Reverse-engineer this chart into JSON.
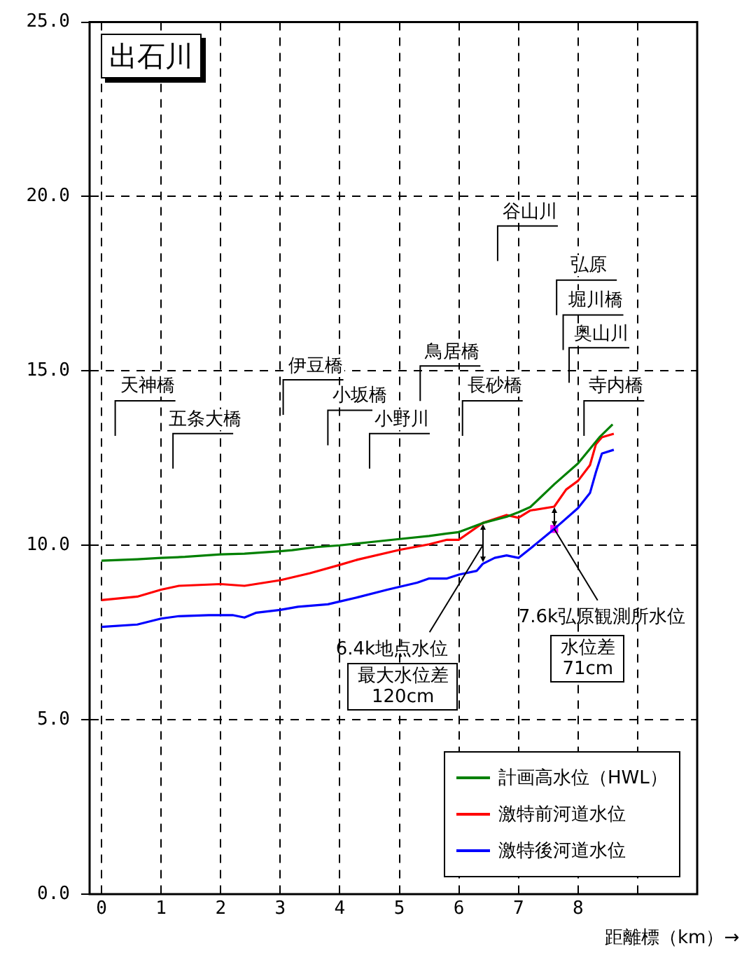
{
  "chart_data": {
    "type": "line",
    "title": "出石川",
    "xlabel": "距離標（km）→",
    "xlim": [
      -0.2,
      10
    ],
    "xticks": [
      0,
      1,
      2,
      3,
      4,
      5,
      6,
      7,
      8,
      {
        "value": 9,
        "label": null
      }
    ],
    "ylim": [
      0,
      25
    ],
    "yticks": [
      {
        "value": 0,
        "label": "0.0"
      },
      {
        "value": 5,
        "label": "5.0"
      },
      {
        "value": 10,
        "label": "10.0"
      },
      {
        "value": 15,
        "label": "15.0"
      },
      {
        "value": 20,
        "label": "20.0"
      },
      {
        "value": 25,
        "label": "25.0"
      }
    ],
    "grid": true,
    "legend": "bottom right",
    "marker": "none",
    "line_style": "solid",
    "series": [
      {
        "name": "計画高水位（HWL）",
        "color": "#008000",
        "x": [
          0,
          0.6,
          1,
          1.4,
          2,
          2.4,
          3,
          3.2,
          3.6,
          4,
          4.5,
          5,
          5.5,
          5.8,
          6,
          6.4,
          6.8,
          7,
          7.2,
          7.6,
          8,
          8.36,
          8.58
        ],
        "values": [
          9.56,
          9.6,
          9.64,
          9.67,
          9.74,
          9.76,
          9.83,
          9.86,
          9.95,
          10.0,
          10.09,
          10.18,
          10.27,
          10.34,
          10.38,
          10.64,
          10.82,
          10.95,
          11.1,
          11.75,
          12.35,
          13.1,
          13.47
        ]
      },
      {
        "name": "激特前河道水位",
        "color": "#ff0000",
        "x": [
          0,
          0.6,
          1,
          1.3,
          2,
          2.4,
          3,
          3.5,
          4,
          4.3,
          5,
          5.5,
          5.8,
          6,
          6.4,
          6.8,
          7,
          7.2,
          7.6,
          7.8,
          8,
          8.2,
          8.3,
          8.4,
          8.6
        ],
        "values": [
          8.43,
          8.53,
          8.73,
          8.84,
          8.89,
          8.84,
          9.0,
          9.2,
          9.44,
          9.59,
          9.87,
          10.03,
          10.16,
          10.16,
          10.64,
          10.87,
          10.79,
          11.0,
          11.11,
          11.6,
          11.85,
          12.3,
          12.9,
          13.1,
          13.2
        ]
      },
      {
        "name": "激特後河道水位",
        "color": "#0000ff",
        "x": [
          0,
          0.6,
          1,
          1.3,
          1.8,
          2.2,
          2.4,
          2.6,
          3,
          3.3,
          3.8,
          4,
          4.3,
          4.8,
          5.3,
          5.5,
          5.8,
          6,
          6.3,
          6.4,
          6.6,
          6.8,
          7,
          7.2,
          7.6,
          8,
          8.2,
          8.3,
          8.4,
          8.6
        ],
        "values": [
          7.66,
          7.73,
          7.9,
          7.97,
          8.0,
          8.0,
          7.93,
          8.07,
          8.15,
          8.24,
          8.31,
          8.39,
          8.51,
          8.73,
          8.93,
          9.05,
          9.05,
          9.16,
          9.27,
          9.47,
          9.64,
          9.71,
          9.64,
          9.91,
          10.47,
          11.07,
          11.5,
          12.1,
          12.63,
          12.74
        ]
      },
      {
        "type": "scatter",
        "marker": "square",
        "color": "#ff00ff",
        "x": [
          7.6
        ],
        "values": [
          10.47
        ]
      }
    ],
    "annotations": [
      "天神橋",
      "五条大橋",
      "伊豆橋",
      "小坂橋",
      "小野川",
      "鳥居橋",
      "長砂橋",
      "谷山川",
      "弘原",
      "堀川橋",
      "奥山川",
      "寺内橋",
      "6.4k地点水位",
      "最大水位差\n120cm",
      {
        "text": "7.6k弘原観測所水位",
        "x": 7.6,
        "y": 10.47
      },
      "水位差\n71cm"
    ]
  }
}
